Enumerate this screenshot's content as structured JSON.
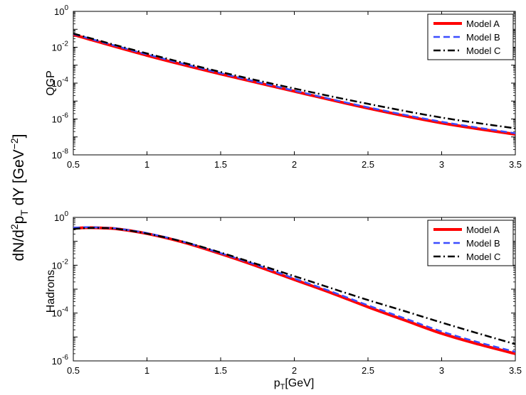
{
  "figure": {
    "ylabel_main": "dN/d",
    "ylabel_sup1": "2",
    "ylabel_mid": "p",
    "ylabel_sub1": "T",
    "ylabel_tail": " dY [GeV",
    "ylabel_sup2": "−2",
    "ylabel_close": "]",
    "xlabel_main": "p",
    "xlabel_sub": "T",
    "xlabel_tail": "[GeV]"
  },
  "chart_data": [
    {
      "type": "line",
      "panel_label": "QGP",
      "yscale": "log",
      "xlim": [
        0.5,
        3.5
      ],
      "ylim": [
        1e-08,
        1
      ],
      "xticks": [
        "0.5",
        "1",
        "1.5",
        "2",
        "2.5",
        "3",
        "3.5"
      ],
      "yticks": [
        {
          "base": "10",
          "exp": "0"
        },
        {
          "base": "10",
          "exp": "-2"
        },
        {
          "base": "10",
          "exp": "-4"
        },
        {
          "base": "10",
          "exp": "-6"
        },
        {
          "base": "10",
          "exp": "-8"
        }
      ],
      "legend_position": "top-right",
      "grid": false,
      "x": [
        0.5,
        1.0,
        1.5,
        2.0,
        2.5,
        3.0,
        3.5
      ],
      "series": [
        {
          "name": "Model A",
          "color": "#ff0000",
          "style": "solid",
          "values": [
            0.05,
            0.0035,
            0.00032,
            3.5e-05,
            4e-06,
            6e-07,
            1.4e-07
          ]
        },
        {
          "name": "Model B",
          "color": "#3b4dff",
          "style": "dashed",
          "values": [
            0.055,
            0.004,
            0.00036,
            3.8e-05,
            4.5e-06,
            7e-07,
            1.6e-07
          ]
        },
        {
          "name": "Model C",
          "color": "#000000",
          "style": "dashdot",
          "values": [
            0.058,
            0.0045,
            0.00042,
            5e-05,
            7e-06,
            1.2e-06,
            3e-07
          ]
        }
      ]
    },
    {
      "type": "line",
      "panel_label": "Hadrons",
      "yscale": "log",
      "xlim": [
        0.5,
        3.5
      ],
      "ylim": [
        1e-06,
        1
      ],
      "xticks": [
        "0.5",
        "1",
        "1.5",
        "2",
        "2.5",
        "3",
        "3.5"
      ],
      "yticks": [
        {
          "base": "10",
          "exp": "0"
        },
        {
          "base": "10",
          "exp": "-2"
        },
        {
          "base": "10",
          "exp": "-4"
        },
        {
          "base": "10",
          "exp": "-6"
        }
      ],
      "legend_position": "top-right",
      "grid": false,
      "x": [
        0.5,
        0.6,
        0.7,
        0.8,
        1.0,
        1.25,
        1.5,
        1.75,
        2.0,
        2.25,
        2.5,
        2.75,
        3.0,
        3.25,
        3.5
      ],
      "series": [
        {
          "name": "Model A",
          "color": "#ff0000",
          "style": "solid",
          "values": [
            0.35,
            0.37,
            0.36,
            0.33,
            0.21,
            0.09,
            0.03,
            0.009,
            0.0025,
            0.0007,
            0.00018,
            5e-05,
            1.4e-05,
            5e-06,
            2e-06
          ]
        },
        {
          "name": "Model B",
          "color": "#3b4dff",
          "style": "dashed",
          "values": [
            0.37,
            0.39,
            0.37,
            0.34,
            0.22,
            0.095,
            0.032,
            0.01,
            0.0028,
            0.0008,
            0.00021,
            6e-05,
            1.7e-05,
            6e-06,
            2.4e-06
          ]
        },
        {
          "name": "Model C",
          "color": "#000000",
          "style": "dashdot",
          "values": [
            0.33,
            0.36,
            0.36,
            0.33,
            0.21,
            0.095,
            0.034,
            0.011,
            0.0035,
            0.0011,
            0.00035,
            0.00012,
            4e-05,
            1.4e-05,
            5e-06
          ]
        }
      ]
    }
  ]
}
